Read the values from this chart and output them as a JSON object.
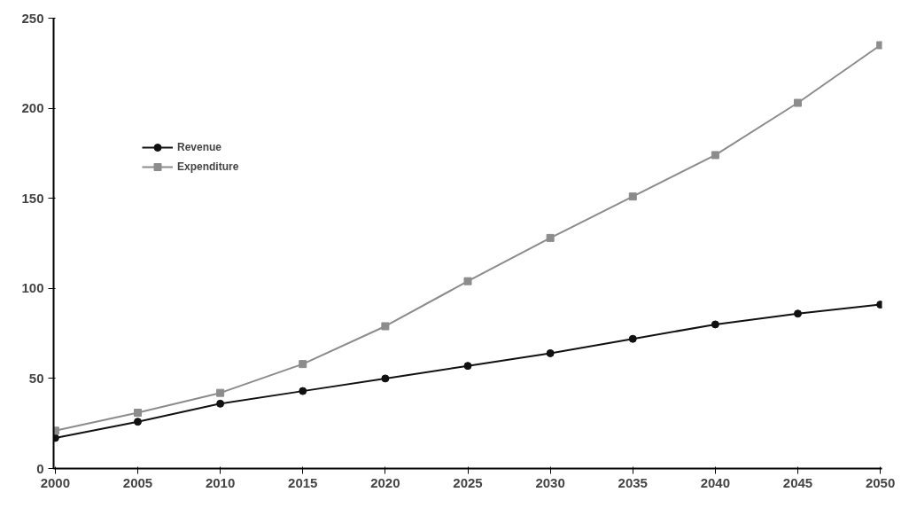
{
  "chart_data": {
    "type": "line",
    "categories": [
      "2000",
      "2005",
      "2010",
      "2015",
      "2020",
      "2025",
      "2030",
      "2035",
      "2040",
      "2045",
      "2050"
    ],
    "series": [
      {
        "name": "Revenue",
        "color": "#111111",
        "marker": "circle",
        "values": [
          17,
          26,
          36,
          43,
          50,
          57,
          64,
          72,
          80,
          86,
          91
        ]
      },
      {
        "name": "Expenditure",
        "color": "#8c8c8c",
        "marker": "square",
        "values": [
          21,
          31,
          42,
          58,
          79,
          104,
          128,
          151,
          174,
          203,
          235
        ]
      }
    ],
    "ylim": [
      0,
      250
    ],
    "yticks": [
      0,
      50,
      100,
      150,
      200,
      250
    ],
    "grid": false,
    "legend": "top left",
    "line_style": "solid"
  }
}
